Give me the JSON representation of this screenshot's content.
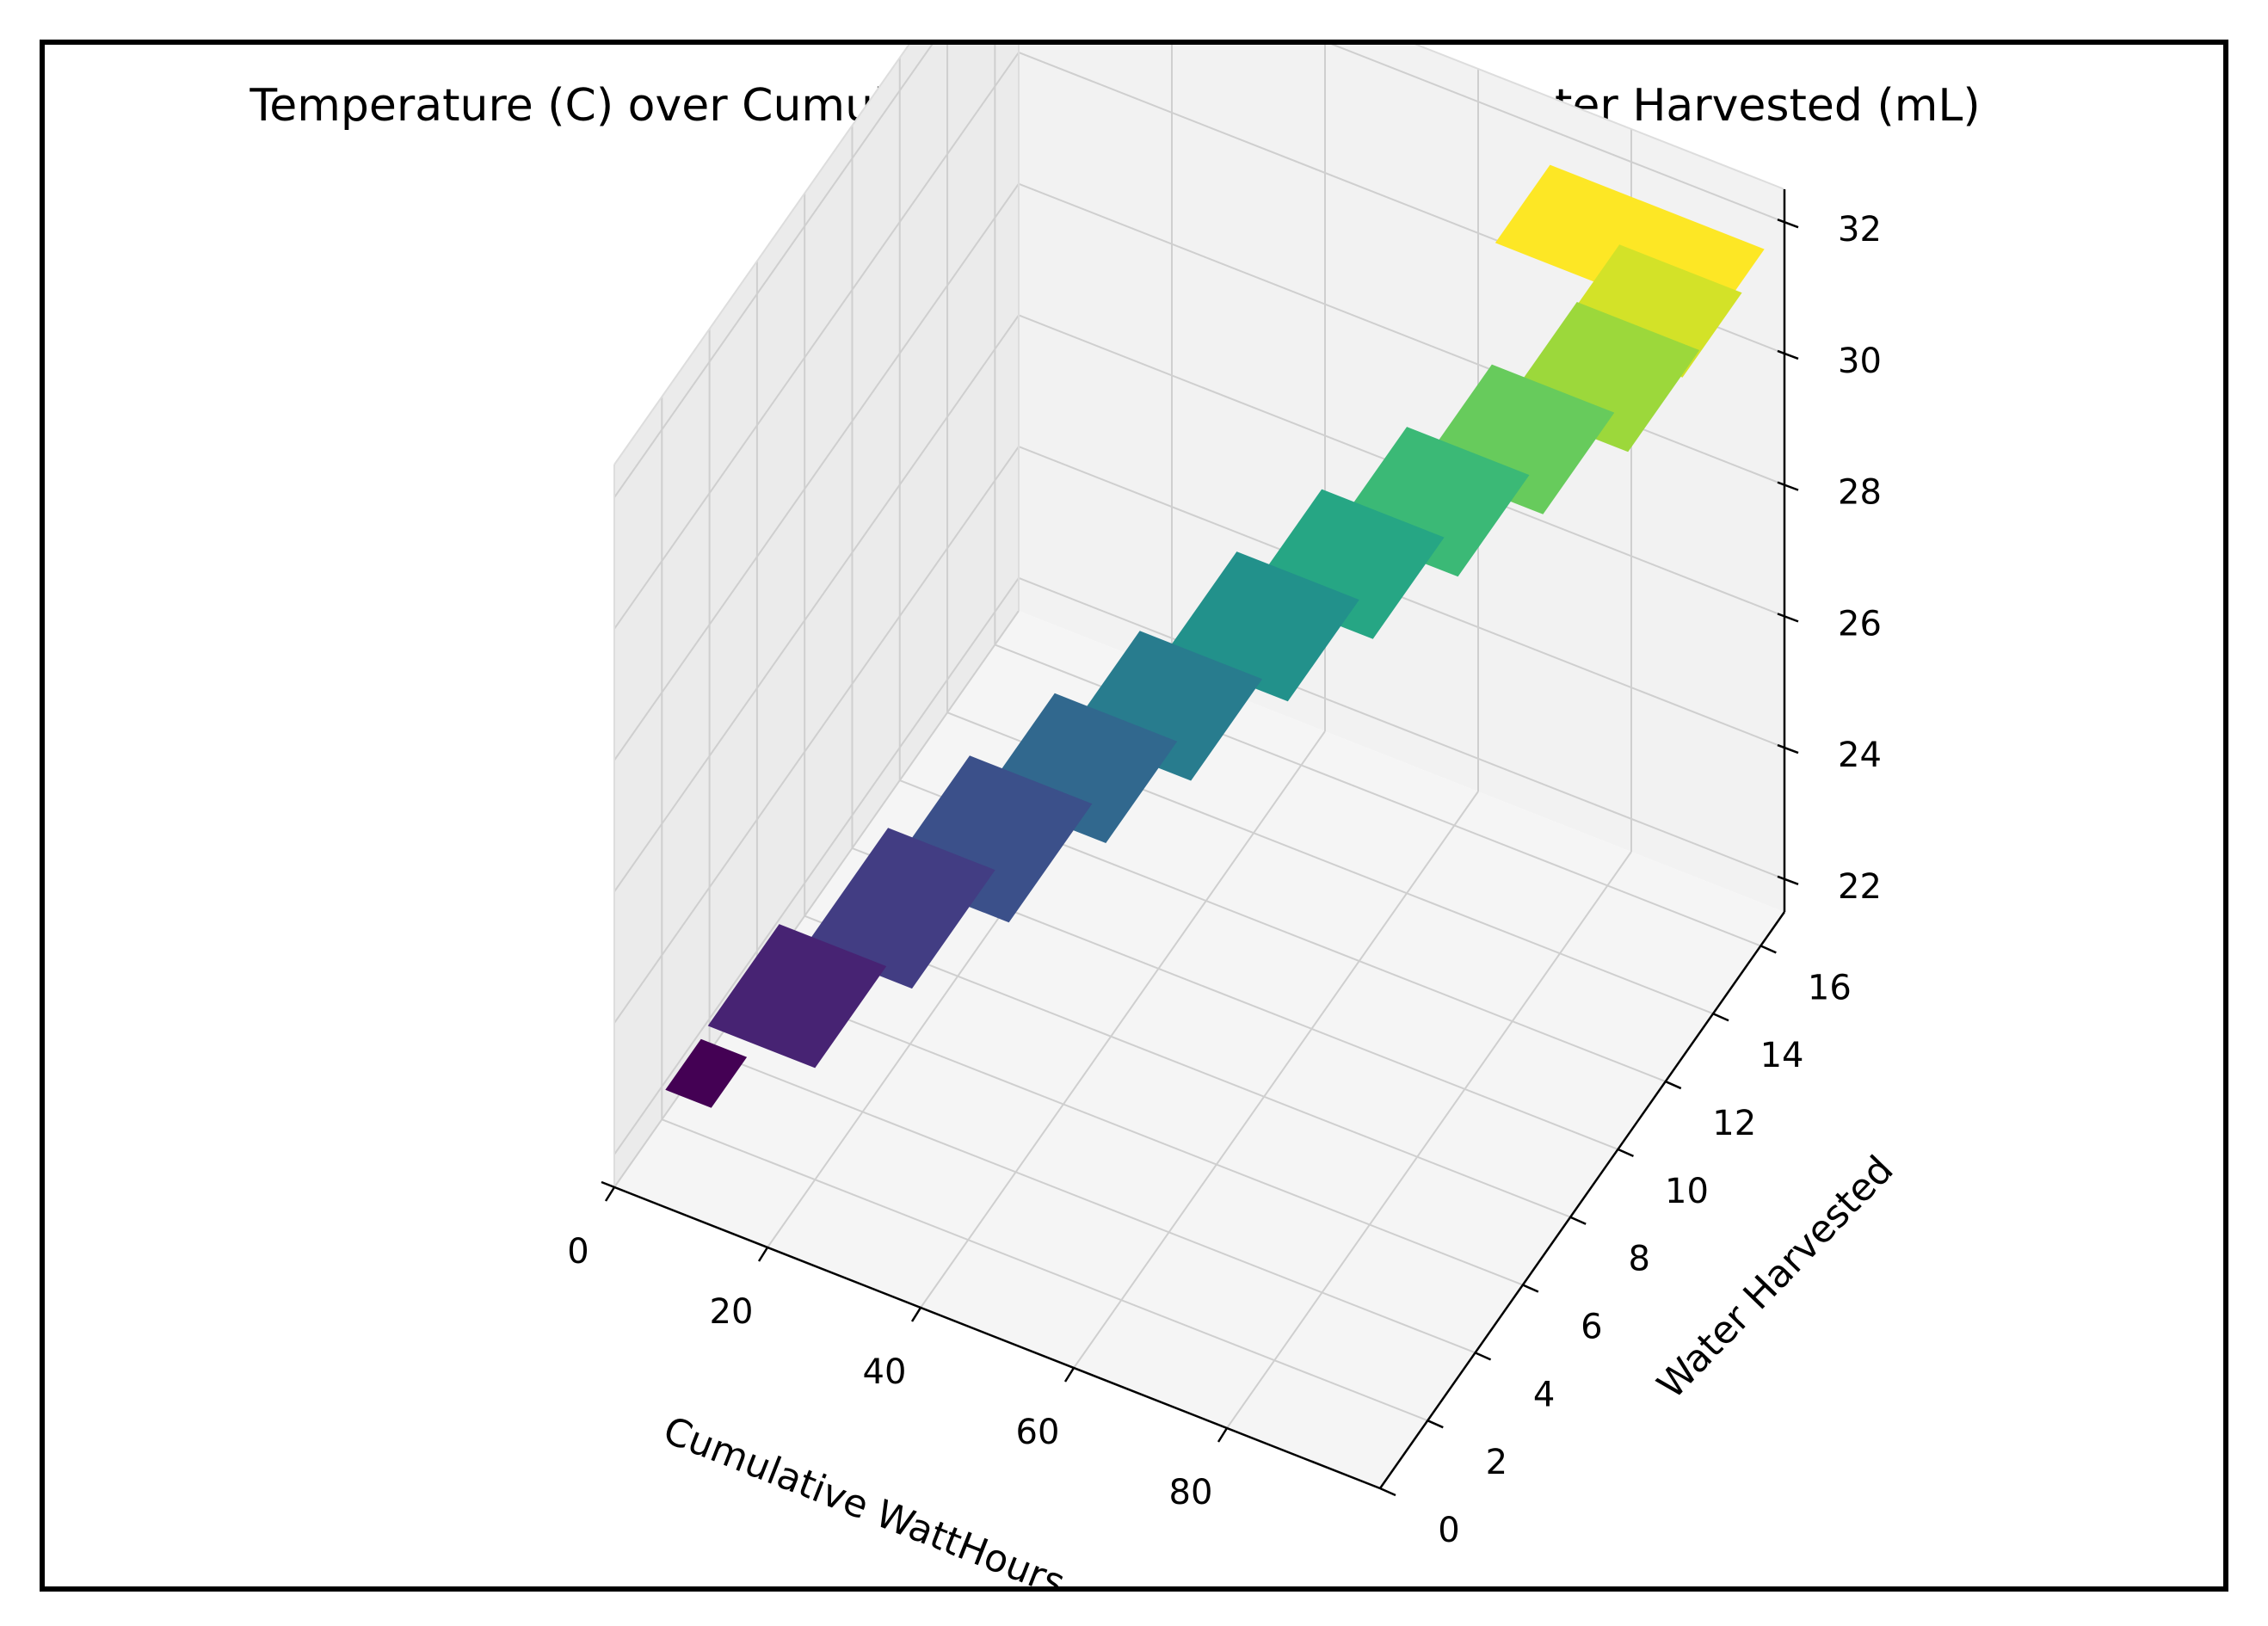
{
  "chart_data": {
    "type": "surface3d",
    "title": "Temperature (C) over Cumulative WattHours (WH) and Water Harvested (mL)",
    "xlabel": "Cumulative WattHours",
    "ylabel": "Water Harvested",
    "zlabel": "",
    "x_ticks": [
      "0",
      "20",
      "40",
      "60",
      "80"
    ],
    "y_ticks": [
      "0",
      "2",
      "4",
      "6",
      "8",
      "10",
      "12",
      "14",
      "16"
    ],
    "z_ticks": [
      "22",
      "24",
      "26",
      "28",
      "30",
      "32"
    ],
    "xlim": [
      0,
      100
    ],
    "ylim": [
      0,
      17
    ],
    "zlim": [
      21.5,
      32.5
    ],
    "colormap": "viridis",
    "colormap_stops": [
      "#440154",
      "#482878",
      "#3e4989",
      "#31688e",
      "#26828e",
      "#1f9e89",
      "#35b779",
      "#6ece58",
      "#b5de2b",
      "#fde725"
    ],
    "segments": [
      {
        "x": [
          2,
          8
        ],
        "y": [
          1.5,
          3.0
        ],
        "z": 22.3
      },
      {
        "x": [
          6,
          20
        ],
        "y": [
          2.0,
          5.0
        ],
        "z": 23.2
      },
      {
        "x": [
          14,
          28
        ],
        "y": [
          3.5,
          7.0
        ],
        "z": 24.0
      },
      {
        "x": [
          20,
          36
        ],
        "y": [
          5.0,
          8.5
        ],
        "z": 24.6
      },
      {
        "x": [
          28,
          44
        ],
        "y": [
          6.5,
          9.5
        ],
        "z": 25.4
      },
      {
        "x": [
          36,
          52
        ],
        "y": [
          7.5,
          10.5
        ],
        "z": 26.2
      },
      {
        "x": [
          44,
          60
        ],
        "y": [
          9.0,
          12.0
        ],
        "z": 27.0
      },
      {
        "x": [
          52,
          68
        ],
        "y": [
          10.0,
          13.0
        ],
        "z": 27.8
      },
      {
        "x": [
          60,
          76
        ],
        "y": [
          11.0,
          14.0
        ],
        "z": 28.6
      },
      {
        "x": [
          68,
          84
        ],
        "y": [
          12.0,
          15.0
        ],
        "z": 29.4
      },
      {
        "x": [
          76,
          92
        ],
        "y": [
          13.0,
          16.0
        ],
        "z": 30.2
      },
      {
        "x": [
          80,
          96
        ],
        "y": [
          14.0,
          16.5
        ],
        "z": 31.0
      },
      {
        "x": [
          70,
          98
        ],
        "y": [
          14.5,
          16.8
        ],
        "z": 31.6
      }
    ],
    "grid": true
  }
}
